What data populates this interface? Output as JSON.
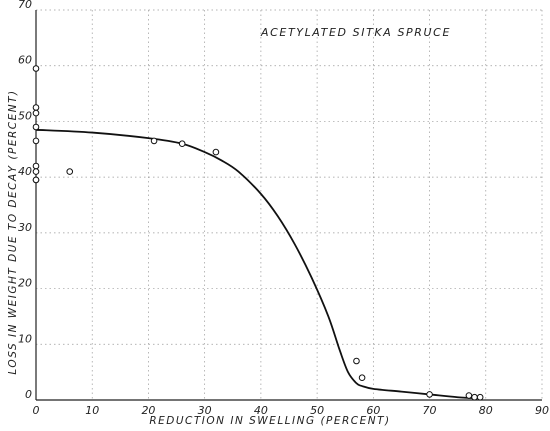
{
  "chart_data": {
    "type": "scatter",
    "title": "ACETYLATED SITKA SPRUCE",
    "xlabel": "REDUCTION IN SWELLING (PERCENT)",
    "ylabel": "LOSS IN WEIGHT DUE TO DECAY (PERCENT)",
    "xlim": [
      0,
      90
    ],
    "ylim": [
      0,
      70
    ],
    "xticks": [
      "0",
      "10",
      "20",
      "30",
      "40",
      "50",
      "60",
      "70",
      "80",
      "90"
    ],
    "yticks": [
      "0",
      "10",
      "20",
      "30",
      "40",
      "50",
      "60",
      "70"
    ],
    "grid": true,
    "series": [
      {
        "type": "scatter",
        "x": [
          0,
          0,
          0,
          0,
          0,
          0,
          0,
          0,
          0,
          6,
          21,
          26,
          32,
          57,
          58,
          70,
          77,
          78,
          79
        ],
        "y": [
          59.5,
          52.5,
          51.5,
          49,
          46.5,
          42,
          41,
          39.5,
          39.5,
          41,
          46.5,
          46,
          44.5,
          7,
          4,
          1,
          0.8,
          0.5,
          0.5
        ]
      },
      {
        "type": "line",
        "x": [
          0,
          10,
          20,
          26,
          30,
          33,
          36,
          40,
          43,
          46,
          49,
          52,
          54,
          55.5,
          57,
          58,
          60,
          65,
          70,
          75,
          79
        ],
        "y": [
          48.5,
          48,
          47,
          46,
          44.5,
          43,
          41,
          37,
          33,
          28,
          22,
          15,
          9,
          5,
          3,
          2.5,
          2,
          1.5,
          1,
          0.5,
          0.3
        ]
      }
    ]
  }
}
